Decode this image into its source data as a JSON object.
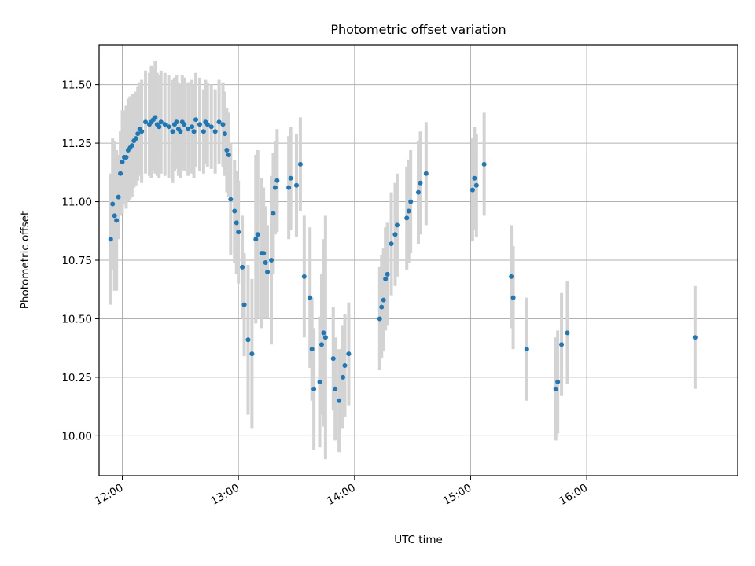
{
  "chart_data": {
    "type": "scatter",
    "title": "Photometric offset variation",
    "xlabel": "UTC time",
    "ylabel": "Photometric offset",
    "x_ticks": [
      "12:00",
      "13:00",
      "14:00",
      "15:00",
      "16:00"
    ],
    "y_ticks": [
      "10.00",
      "10.25",
      "10.50",
      "10.75",
      "11.00",
      "11.25",
      "11.50"
    ],
    "xlim": [
      "11:48",
      "17:18"
    ],
    "ylim": [
      9.83,
      11.67
    ],
    "grid": true,
    "colors": {
      "points": "#1f77b4",
      "error_bars": "#d3d3d3",
      "grid": "#b0b0b0"
    },
    "series": [
      {
        "x": [
          "11:54",
          "11:55",
          "11:56",
          "11:57",
          "11:58",
          "11:59",
          "12:00",
          "12:01",
          "12:02",
          "12:03",
          "12:04",
          "12:05",
          "12:06",
          "12:07",
          "12:08",
          "12:09",
          "12:10",
          "12:12",
          "12:14",
          "12:15",
          "12:16",
          "12:17",
          "12:18",
          "12:19",
          "12:20",
          "12:22",
          "12:24",
          "12:26",
          "12:27",
          "12:28",
          "12:29",
          "12:30",
          "12:31",
          "12:32",
          "12:34",
          "12:36",
          "12:37",
          "12:38",
          "12:40",
          "12:42",
          "12:43",
          "12:44",
          "12:46",
          "12:48",
          "12:50",
          "12:52",
          "12:53",
          "12:54",
          "12:55",
          "12:56",
          "12:58",
          "12:59",
          "13:00",
          "13:02",
          "13:03",
          "13:05",
          "13:07",
          "13:09",
          "13:10",
          "13:12",
          "13:13",
          "13:14",
          "13:15",
          "13:17",
          "13:18",
          "13:19",
          "13:20",
          "13:26",
          "13:27",
          "13:30",
          "13:32",
          "13:34",
          "13:37",
          "13:38",
          "13:39",
          "13:42",
          "13:43",
          "13:44",
          "13:45",
          "13:49",
          "13:50",
          "13:52",
          "13:54",
          "13:55",
          "13:57",
          "14:13",
          "14:14",
          "14:15",
          "14:16",
          "14:17",
          "14:19",
          "14:21",
          "14:22",
          "14:27",
          "14:28",
          "14:29",
          "14:33",
          "14:34",
          "14:37",
          "15:01",
          "15:02",
          "15:03",
          "15:07",
          "15:21",
          "15:22",
          "15:29",
          "15:44",
          "15:45",
          "15:47",
          "15:50",
          "16:56"
        ],
        "y": [
          10.84,
          10.99,
          10.94,
          10.92,
          11.02,
          11.12,
          11.17,
          11.19,
          11.19,
          11.22,
          11.23,
          11.24,
          11.26,
          11.27,
          11.29,
          11.31,
          11.3,
          11.34,
          11.33,
          11.34,
          11.35,
          11.36,
          11.33,
          11.32,
          11.34,
          11.33,
          11.32,
          11.3,
          11.33,
          11.34,
          11.31,
          11.3,
          11.34,
          11.33,
          11.31,
          11.32,
          11.3,
          11.35,
          11.33,
          11.3,
          11.34,
          11.33,
          11.32,
          11.3,
          11.34,
          11.33,
          11.29,
          11.22,
          11.2,
          11.01,
          10.96,
          10.91,
          10.87,
          10.72,
          10.56,
          10.41,
          10.35,
          10.84,
          10.86,
          10.78,
          10.78,
          10.74,
          10.7,
          10.75,
          10.95,
          11.06,
          11.09,
          11.06,
          11.1,
          11.07,
          11.16,
          10.68,
          10.59,
          10.37,
          10.2,
          10.23,
          10.39,
          10.44,
          10.42,
          10.33,
          10.2,
          10.15,
          10.25,
          10.3,
          10.35,
          10.5,
          10.55,
          10.58,
          10.67,
          10.69,
          10.82,
          10.86,
          10.9,
          10.93,
          10.96,
          11.0,
          11.04,
          11.08,
          11.12,
          11.05,
          11.1,
          11.07,
          11.16,
          10.68,
          10.59,
          10.37,
          10.2,
          10.23,
          10.39,
          10.44,
          10.42
        ],
        "yerr": [
          0.28,
          0.28,
          0.32,
          0.3,
          0.18,
          0.18,
          0.22,
          0.2,
          0.22,
          0.22,
          0.22,
          0.22,
          0.2,
          0.2,
          0.2,
          0.2,
          0.22,
          0.22,
          0.22,
          0.24,
          0.22,
          0.24,
          0.22,
          0.22,
          0.22,
          0.22,
          0.22,
          0.22,
          0.2,
          0.2,
          0.2,
          0.2,
          0.2,
          0.2,
          0.2,
          0.2,
          0.2,
          0.2,
          0.2,
          0.18,
          0.18,
          0.18,
          0.18,
          0.18,
          0.18,
          0.18,
          0.18,
          0.18,
          0.18,
          0.24,
          0.22,
          0.22,
          0.22,
          0.22,
          0.22,
          0.32,
          0.32,
          0.36,
          0.36,
          0.32,
          0.28,
          0.24,
          0.2,
          0.36,
          0.26,
          0.2,
          0.22,
          0.22,
          0.22,
          0.22,
          0.2,
          0.26,
          0.3,
          0.22,
          0.26,
          0.28,
          0.3,
          0.4,
          0.52,
          0.22,
          0.22,
          0.22,
          0.22,
          0.22,
          0.22,
          0.22,
          0.22,
          0.22,
          0.22,
          0.22,
          0.22,
          0.22,
          0.22,
          0.22,
          0.22,
          0.22,
          0.22,
          0.22,
          0.22,
          0.22,
          0.22,
          0.22,
          0.22,
          0.22,
          0.22,
          0.22,
          0.22,
          0.22,
          0.22,
          0.22,
          0.22
        ]
      }
    ]
  }
}
